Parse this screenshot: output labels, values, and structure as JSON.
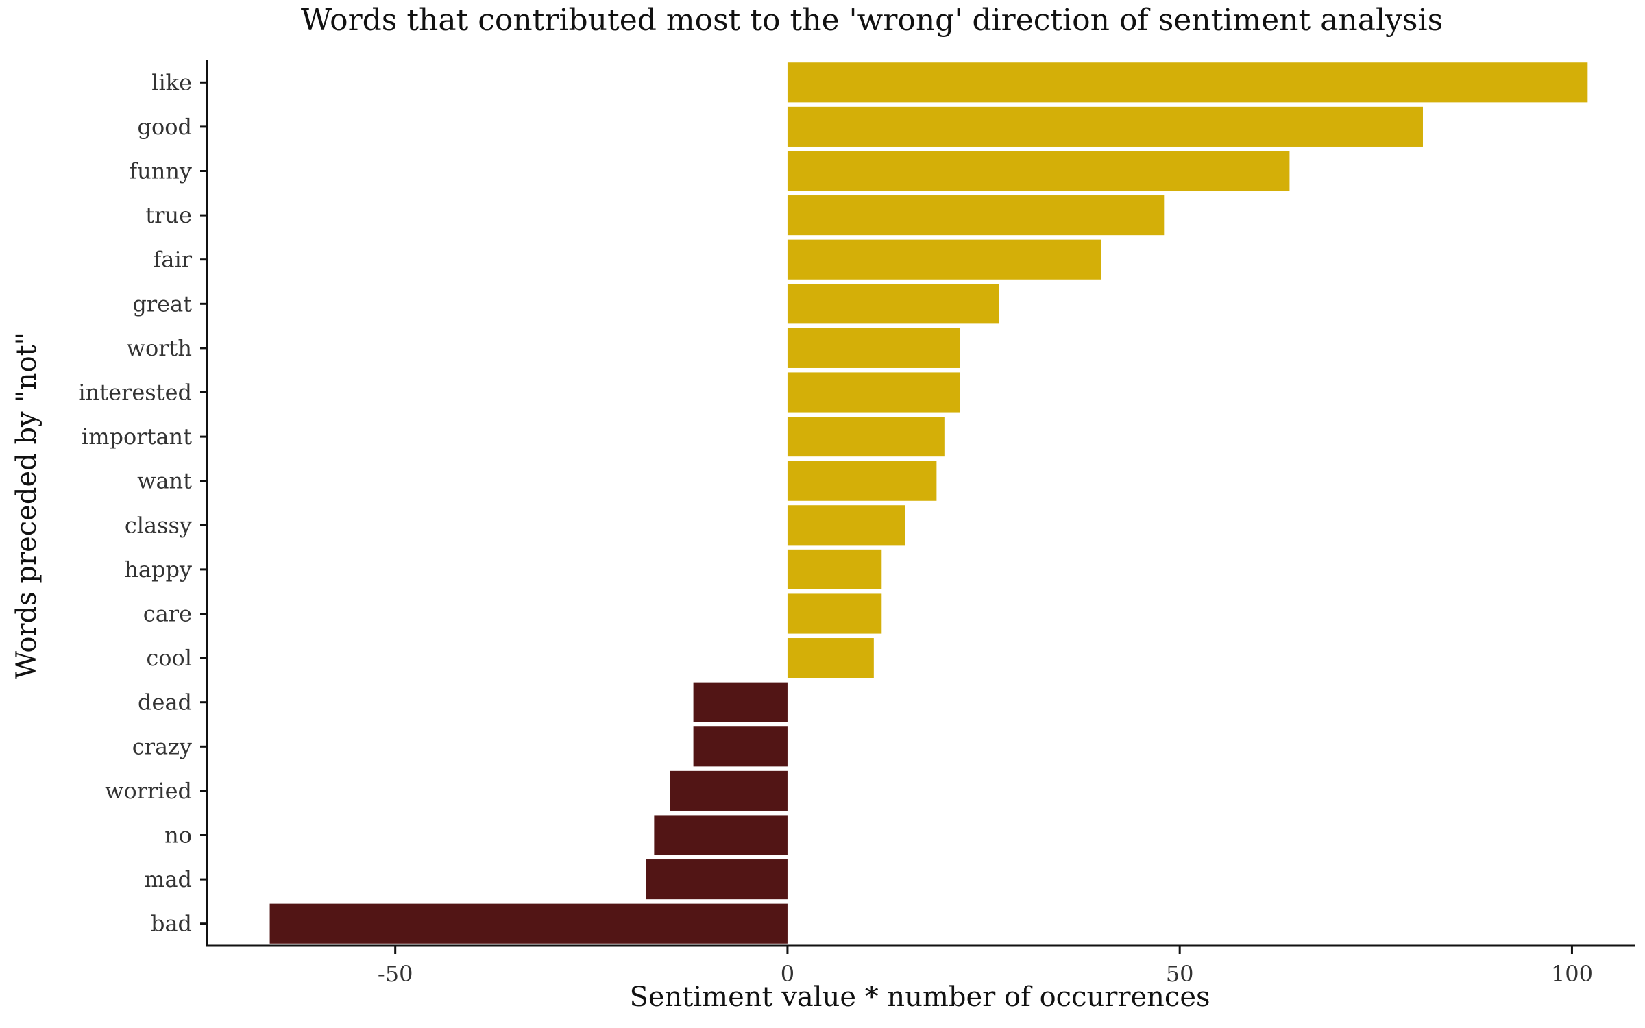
{
  "chart_data": {
    "type": "bar",
    "orientation": "horizontal",
    "title": "Words that contributed most to the 'wrong' direction of sentiment analysis",
    "xlabel": "Sentiment value * number of occurrences",
    "ylabel": "Words preceded by \"not\"",
    "xlim": [
      -74,
      108
    ],
    "xticks": [
      -50,
      0,
      50,
      100
    ],
    "grid": false,
    "legend": "none",
    "categories": [
      "like",
      "good",
      "funny",
      "true",
      "fair",
      "great",
      "worth",
      "interested",
      "important",
      "want",
      "classy",
      "happy",
      "care",
      "cool",
      "dead",
      "crazy",
      "worried",
      "no",
      "mad",
      "bad"
    ],
    "values": [
      102,
      81,
      64,
      48,
      40,
      27,
      22,
      22,
      20,
      19,
      15,
      12,
      12,
      11,
      -12,
      -12,
      -15,
      -17,
      -18,
      -66
    ],
    "colors": {
      "positive": "#D4AF08",
      "negative": "#521515"
    }
  }
}
